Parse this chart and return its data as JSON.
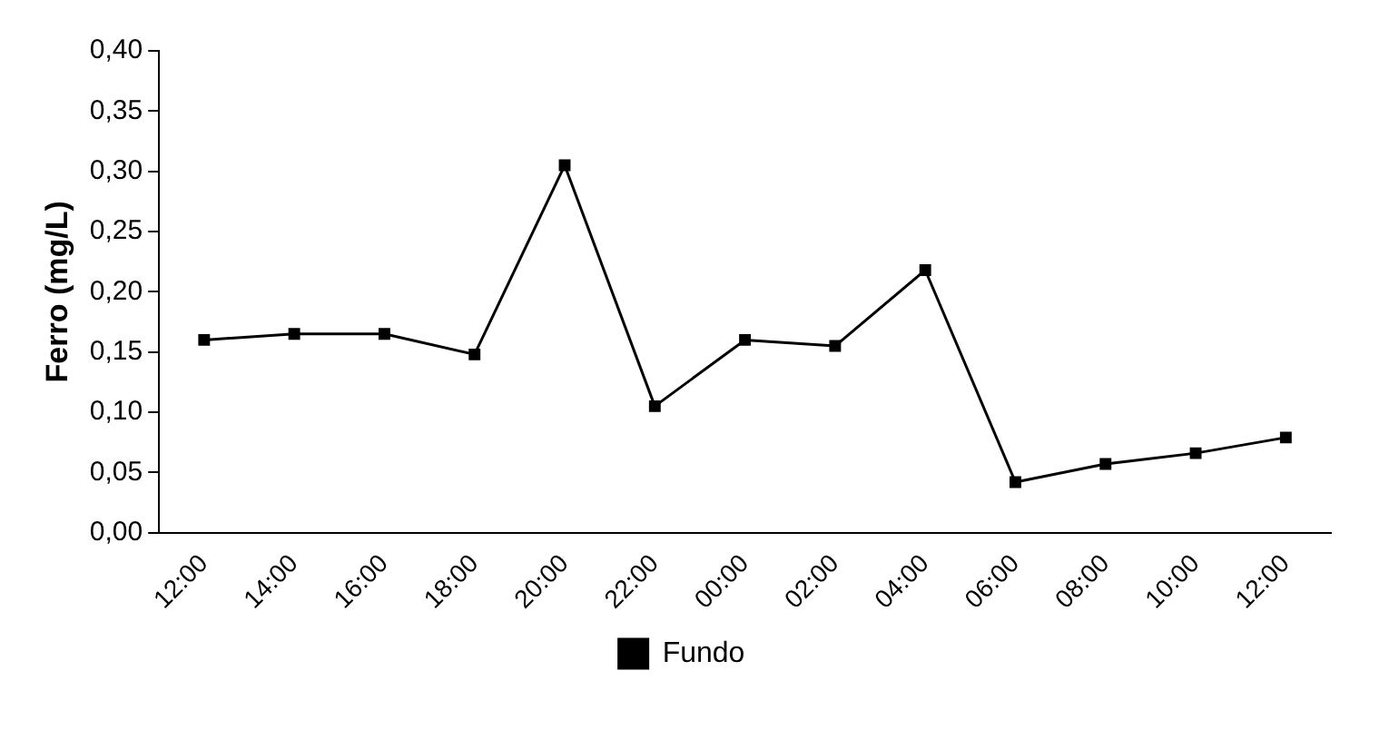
{
  "chart_data": {
    "type": "line",
    "ylabel": "Ferro (mg/L)",
    "categories": [
      "12:00",
      "14:00",
      "16:00",
      "18:00",
      "20:00",
      "22:00",
      "00:00",
      "02:00",
      "04:00",
      "06:00",
      "08:00",
      "10:00",
      "12:00"
    ],
    "series": [
      {
        "name": "Fundo",
        "color": "#000000",
        "values": [
          0.16,
          0.165,
          0.165,
          0.148,
          0.305,
          0.105,
          0.16,
          0.155,
          0.218,
          0.042,
          0.057,
          0.066,
          0.079
        ]
      }
    ],
    "ylim": [
      0,
      0.4
    ],
    "yticks": [
      {
        "value": 0,
        "label": "0,00"
      },
      {
        "value": 0.05,
        "label": "0,05"
      },
      {
        "value": 0.1,
        "label": "0,10"
      },
      {
        "value": 0.15,
        "label": "0,15"
      },
      {
        "value": 0.2,
        "label": "0,20"
      },
      {
        "value": 0.25,
        "label": "0,25"
      },
      {
        "value": 0.3,
        "label": "0,30"
      },
      {
        "value": 0.35,
        "label": "0,35"
      },
      {
        "value": 0.4,
        "label": "0,40"
      }
    ],
    "marker": "square",
    "legend": "bottom",
    "grid": false
  }
}
